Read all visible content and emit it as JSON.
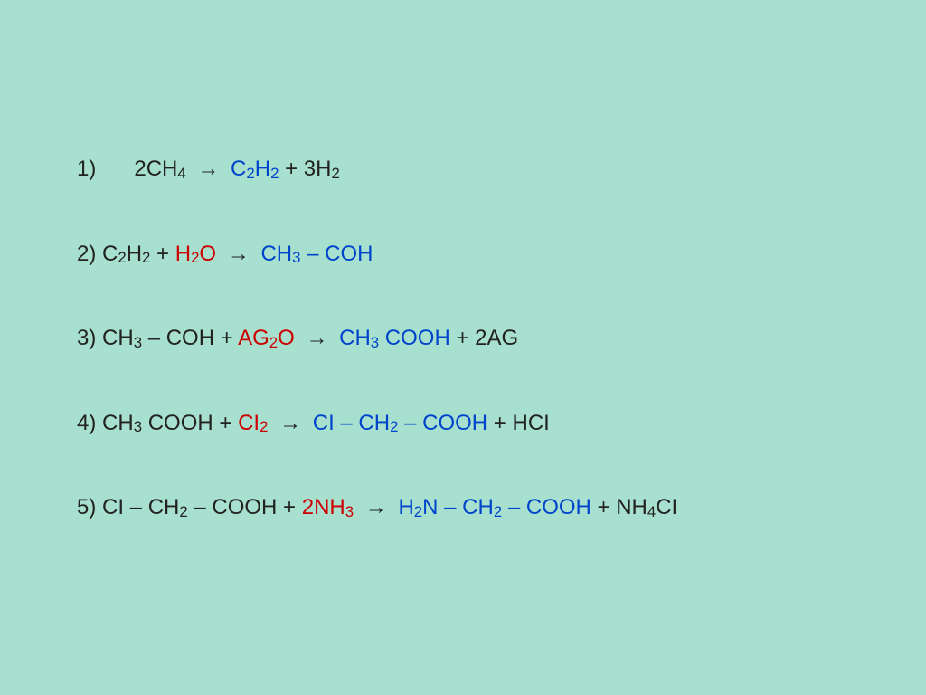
{
  "slide": {
    "background_color": "#a8e0d0",
    "text_color_default": "#222222",
    "text_color_blue": "#0044cc",
    "text_color_red": "#c00000",
    "font_size": 24,
    "equations": [
      {
        "num": "1)",
        "indented": true,
        "parts": [
          {
            "t": "2CH",
            "c": "black"
          },
          {
            "t": "4",
            "c": "black",
            "sub": true
          },
          {
            "t": " → ",
            "c": "black",
            "arrow": true
          },
          {
            "t": "C",
            "c": "blue"
          },
          {
            "t": "2",
            "c": "blue",
            "sub": true
          },
          {
            "t": "H",
            "c": "blue"
          },
          {
            "t": "2",
            "c": "blue",
            "sub": true
          },
          {
            "t": " + 3H",
            "c": "black"
          },
          {
            "t": "2",
            "c": "black",
            "sub": true
          }
        ]
      },
      {
        "num": "2)",
        "parts": [
          {
            "t": " C",
            "c": "black"
          },
          {
            "t": "2",
            "c": "black",
            "sub": true
          },
          {
            "t": "H",
            "c": "black"
          },
          {
            "t": "2",
            "c": "black",
            "sub": true
          },
          {
            "t": " + ",
            "c": "black"
          },
          {
            "t": "H",
            "c": "red"
          },
          {
            "t": "2",
            "c": "red",
            "sub": true
          },
          {
            "t": "O",
            "c": "red"
          },
          {
            "t": " → ",
            "c": "black",
            "arrow": true
          },
          {
            "t": "CH",
            "c": "blue"
          },
          {
            "t": "3",
            "c": "blue",
            "sub": true
          },
          {
            "t": " – COH",
            "c": "blue"
          }
        ]
      },
      {
        "num": "3)",
        "parts": [
          {
            "t": " CH",
            "c": "black"
          },
          {
            "t": "3",
            "c": "black",
            "sub": true
          },
          {
            "t": " – COH + ",
            "c": "black"
          },
          {
            "t": "AG",
            "c": "red"
          },
          {
            "t": "2",
            "c": "red",
            "sub": true
          },
          {
            "t": "O",
            "c": "red"
          },
          {
            "t": " → ",
            "c": "black",
            "arrow": true
          },
          {
            "t": "CH",
            "c": "blue"
          },
          {
            "t": "3",
            "c": "blue",
            "sub": true
          },
          {
            "t": " COOH",
            "c": "blue"
          },
          {
            "t": " + 2AG",
            "c": "black"
          }
        ]
      },
      {
        "num": "4)",
        "parts": [
          {
            "t": " CH",
            "c": "black"
          },
          {
            "t": "3",
            "c": "black",
            "sub": true
          },
          {
            "t": " COOH + ",
            "c": "black"
          },
          {
            "t": "CI",
            "c": "red"
          },
          {
            "t": "2",
            "c": "red",
            "sub": true
          },
          {
            "t": " → ",
            "c": "black",
            "arrow": true
          },
          {
            "t": "CI – CH",
            "c": "blue"
          },
          {
            "t": "2",
            "c": "blue",
            "sub": true
          },
          {
            "t": " – COOH",
            "c": "blue"
          },
          {
            "t": " + HCI",
            "c": "black"
          }
        ]
      },
      {
        "num": "5)",
        "parts": [
          {
            "t": " CI – CH",
            "c": "black"
          },
          {
            "t": "2",
            "c": "black",
            "sub": true
          },
          {
            "t": " – COOH + ",
            "c": "black"
          },
          {
            "t": "2NH",
            "c": "red"
          },
          {
            "t": "3",
            "c": "red",
            "sub": true
          },
          {
            "t": " → ",
            "c": "black",
            "arrow": true
          },
          {
            "t": "H",
            "c": "blue"
          },
          {
            "t": "2",
            "c": "blue",
            "sub": true
          },
          {
            "t": "N – CH",
            "c": "blue"
          },
          {
            "t": "2",
            "c": "blue",
            "sub": true
          },
          {
            "t": " – COOH",
            "c": "blue"
          },
          {
            "t": " + NH",
            "c": "black"
          },
          {
            "t": "4",
            "c": "black",
            "sub": true
          },
          {
            "t": "CI",
            "c": "black"
          }
        ]
      }
    ]
  }
}
